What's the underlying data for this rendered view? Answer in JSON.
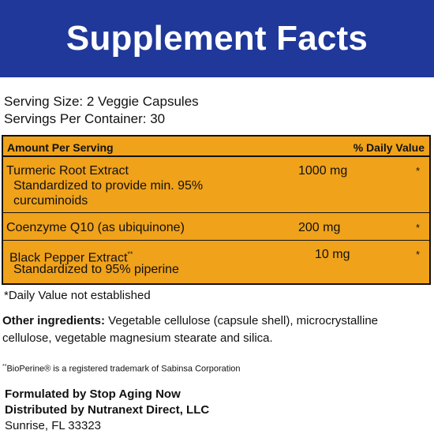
{
  "header": {
    "title": "Supplement Facts",
    "bg_color": "#1f3899"
  },
  "serving": {
    "size": "Serving Size: 2 Veggie Capsules",
    "per_container": "Servings Per Container: 30"
  },
  "table": {
    "bg_color": "#f0a21a",
    "header_left": "Amount Per Serving",
    "header_right": "% Daily Value",
    "rows": [
      {
        "name": "Turmeric Root Extract",
        "sub1": "Standardized to provide min. 95%",
        "sub2": "curcuminoids",
        "amount": "1000 mg",
        "dv": "*"
      },
      {
        "name": "Coenzyme Q10 (as ubiquinone)",
        "amount": "200 mg",
        "dv": "*"
      },
      {
        "name": "Black Pepper Extract",
        "name_mark": "**",
        "sub1": "Standardized to 95% piperine",
        "amount": "10 mg",
        "dv": "*"
      }
    ]
  },
  "footnote": "*Daily Value not established",
  "other_ingredients": {
    "label": "Other ingredients:",
    "text": " Vegetable cellulose (capsule shell), microcrystalline cellulose, vegetable magnesium stearate and silica."
  },
  "trademark": {
    "mark": "**",
    "text": "BioPerine® is a registered trademark of Sabinsa Corporation"
  },
  "company": {
    "formulated": "Formulated by Stop Aging Now",
    "distributed": "Distributed by Nutranext Direct, LLC",
    "location": "Sunrise, FL 33323"
  }
}
